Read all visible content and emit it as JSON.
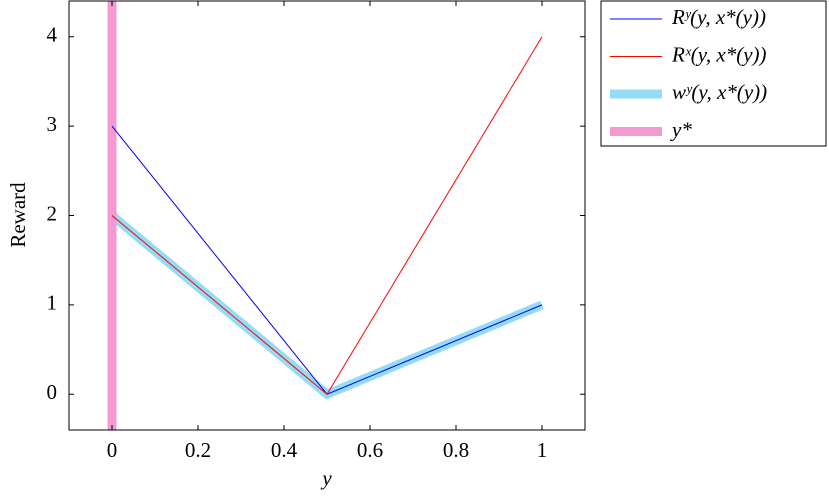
{
  "chart_data": {
    "type": "line",
    "xlabel": "y",
    "ylabel": "Reward",
    "x": [
      0,
      0.5,
      1
    ],
    "series": [
      {
        "name": "Rʸ(y, x*(y))",
        "color": "#0000ff",
        "linewidth": 1,
        "values": [
          3,
          0,
          1
        ]
      },
      {
        "name": "Rˣ(y, x*(y))",
        "color": "#ff0000",
        "linewidth": 1,
        "values": [
          2,
          0,
          4
        ]
      },
      {
        "name": "wʸ(y, x*(y))",
        "color": "#93dcf6",
        "linewidth": 9,
        "values": [
          2,
          0,
          1
        ]
      },
      {
        "name": "y*",
        "color": "#f49ad0",
        "linewidth": 9,
        "vline": 0
      }
    ],
    "xlim": [
      -0.1,
      1.1
    ],
    "ylim": [
      -0.4,
      4.4
    ],
    "xticks": [
      0,
      0.2,
      0.4,
      0.6,
      0.8,
      1
    ],
    "yticks": [
      0,
      1,
      2,
      3,
      4
    ],
    "legend": "outside-right"
  }
}
